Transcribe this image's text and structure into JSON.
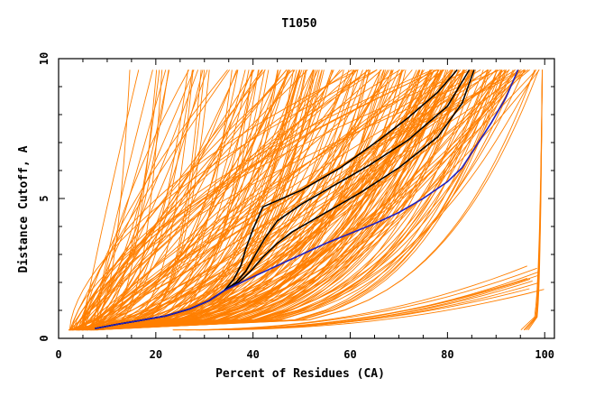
{
  "chart_data": {
    "type": "line",
    "title": "T1050",
    "xlabel": "Percent of Residues (CA)",
    "ylabel": "Distance Cutoff, A",
    "xlim": [
      0,
      102
    ],
    "ylim": [
      0,
      10
    ],
    "x_ticks": [
      "0",
      "20",
      "40",
      "60",
      "80",
      "100"
    ],
    "y_ticks": [
      "0",
      "5",
      "10"
    ],
    "grid": false,
    "legend": "none",
    "colors": {
      "background_models": "#ff7f00",
      "highlight_black": "#000000",
      "highlight_blue": "#2020c0"
    },
    "series": [
      {
        "style": "black",
        "x": [
          7.5,
          12,
          17,
          22,
          27,
          31,
          34,
          36,
          37.5,
          38.5,
          40,
          42,
          50,
          58,
          66,
          72,
          78,
          82
        ],
        "y": [
          0.35,
          0.5,
          0.65,
          0.8,
          1.05,
          1.35,
          1.7,
          2.1,
          2.6,
          3.2,
          3.9,
          4.7,
          5.3,
          6.1,
          7.1,
          7.9,
          8.8,
          9.6
        ]
      },
      {
        "style": "black",
        "x": [
          7.5,
          12,
          17,
          22,
          27,
          31,
          34,
          36.5,
          38.5,
          40.5,
          42.5,
          45,
          50,
          56,
          64,
          72,
          80,
          84.5
        ],
        "y": [
          0.35,
          0.5,
          0.65,
          0.8,
          1.05,
          1.35,
          1.7,
          2.0,
          2.4,
          3.0,
          3.6,
          4.2,
          4.8,
          5.4,
          6.2,
          7.1,
          8.3,
          9.6
        ]
      },
      {
        "style": "black",
        "x": [
          7.5,
          12,
          17,
          22,
          27,
          31,
          34,
          37,
          39.5,
          42,
          45,
          48,
          54,
          62,
          70,
          78,
          83,
          85.5
        ],
        "y": [
          0.35,
          0.5,
          0.65,
          0.8,
          1.05,
          1.35,
          1.7,
          2.0,
          2.4,
          2.9,
          3.4,
          3.8,
          4.4,
          5.2,
          6.1,
          7.2,
          8.4,
          9.6
        ]
      },
      {
        "style": "blue",
        "x": [
          7.5,
          12,
          17,
          22,
          27,
          31,
          34,
          40,
          45,
          50,
          55,
          60,
          65,
          70,
          75,
          80,
          83,
          86,
          89,
          92,
          94.5
        ],
        "y": [
          0.35,
          0.5,
          0.65,
          0.8,
          1.05,
          1.35,
          1.7,
          2.2,
          2.6,
          3.0,
          3.4,
          3.75,
          4.1,
          4.5,
          5.0,
          5.6,
          6.1,
          6.9,
          7.7,
          8.6,
          9.6
        ]
      }
    ],
    "model_count": 220,
    "model_ymax": 9.6,
    "model_ymin": 0.3,
    "model_x_start": [
      2,
      8
    ],
    "outlier_group_start_x": [
      23,
      30
    ],
    "outlier_group_end_x": [
      96,
      100
    ]
  }
}
